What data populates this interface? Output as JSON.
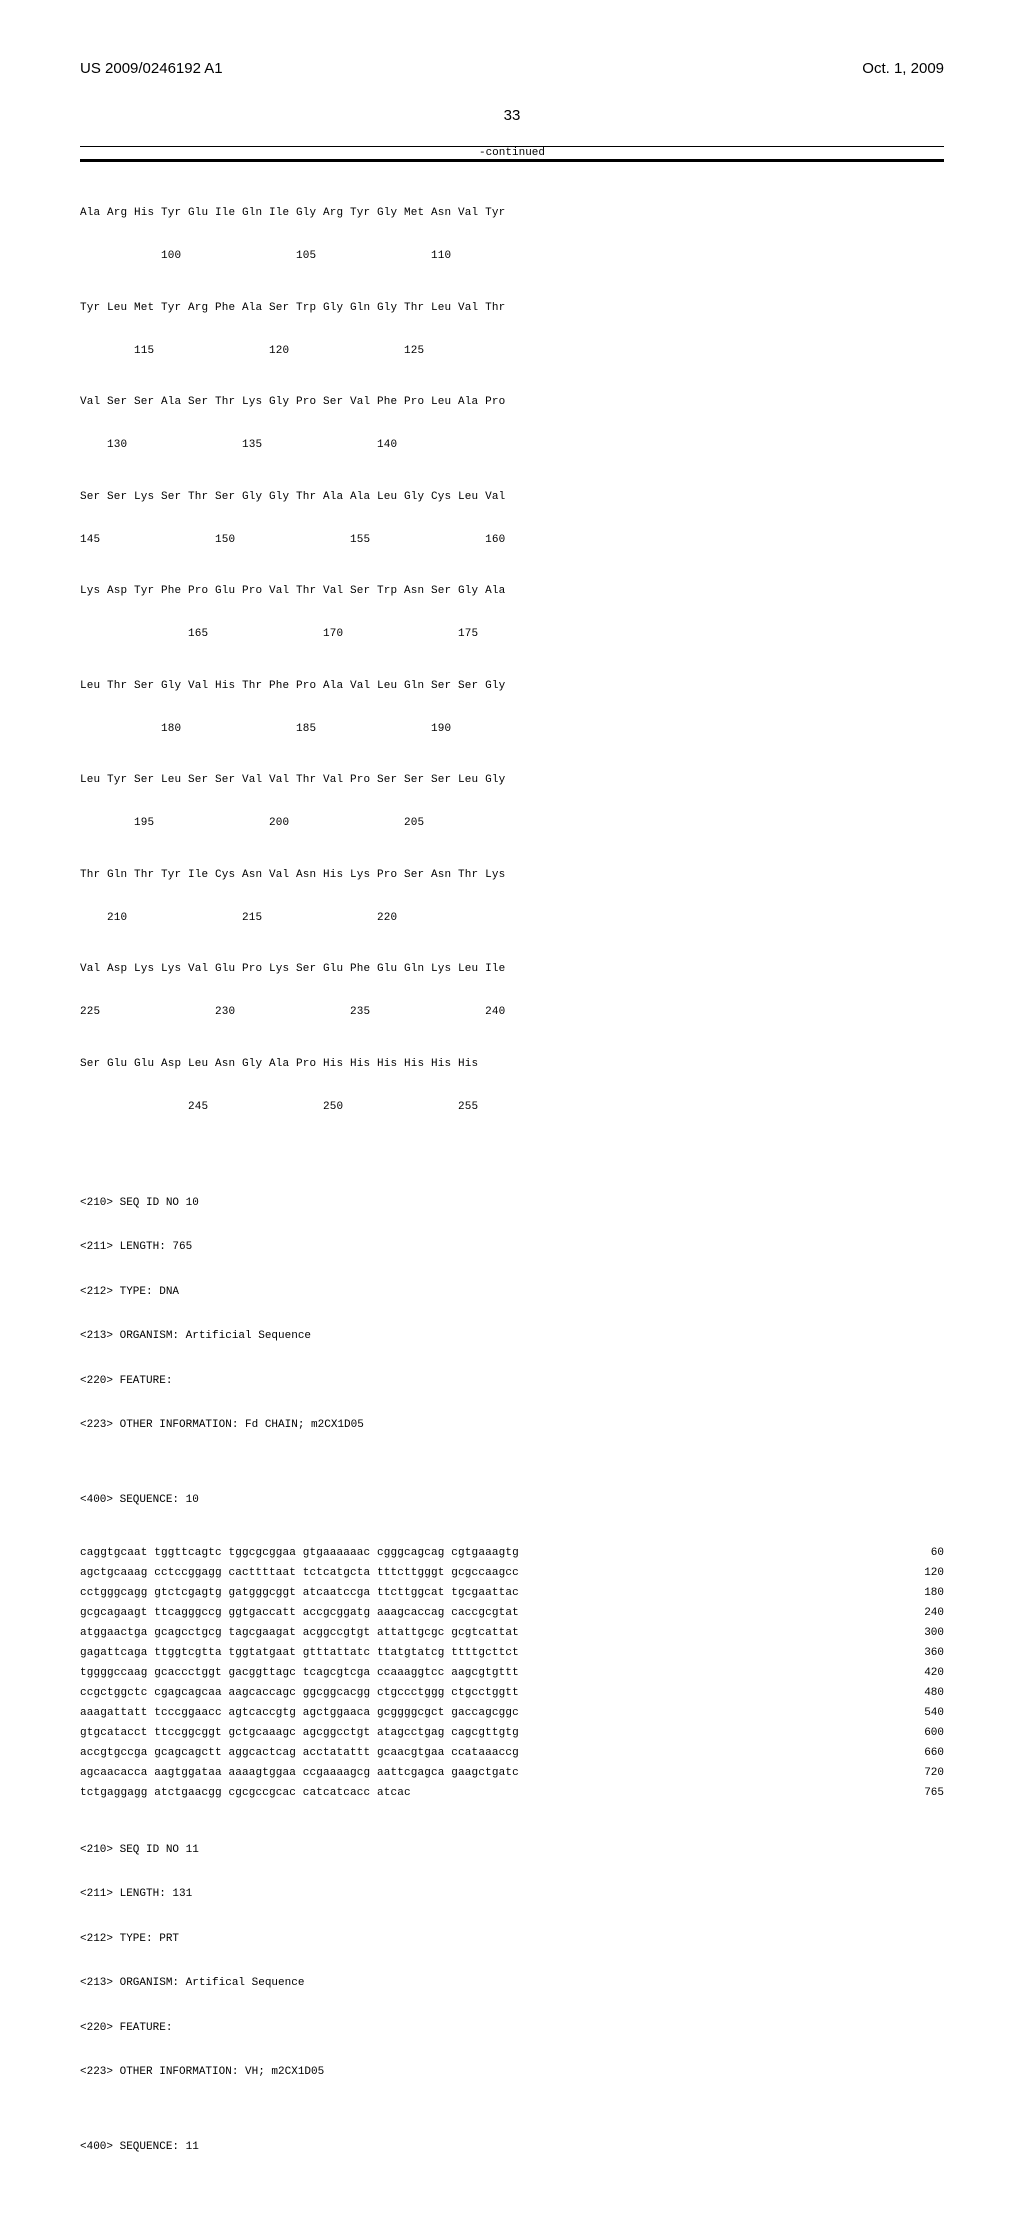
{
  "header": {
    "left": "US 2009/0246192 A1",
    "right": "Oct. 1, 2009",
    "page_number": "33"
  },
  "continued": "-continued",
  "protein_rows": [
    {
      "aa": "Ala Arg His Tyr Glu Ile Gln Ile Gly Arg Tyr Gly Met Asn Val Tyr",
      "nums": "            100                 105                 110"
    },
    {
      "aa": "Tyr Leu Met Tyr Arg Phe Ala Ser Trp Gly Gln Gly Thr Leu Val Thr",
      "nums": "        115                 120                 125"
    },
    {
      "aa": "Val Ser Ser Ala Ser Thr Lys Gly Pro Ser Val Phe Pro Leu Ala Pro",
      "nums": "    130                 135                 140"
    },
    {
      "aa": "Ser Ser Lys Ser Thr Ser Gly Gly Thr Ala Ala Leu Gly Cys Leu Val",
      "nums": "145                 150                 155                 160"
    },
    {
      "aa": "Lys Asp Tyr Phe Pro Glu Pro Val Thr Val Ser Trp Asn Ser Gly Ala",
      "nums": "                165                 170                 175"
    },
    {
      "aa": "Leu Thr Ser Gly Val His Thr Phe Pro Ala Val Leu Gln Ser Ser Gly",
      "nums": "            180                 185                 190"
    },
    {
      "aa": "Leu Tyr Ser Leu Ser Ser Val Val Thr Val Pro Ser Ser Ser Leu Gly",
      "nums": "        195                 200                 205"
    },
    {
      "aa": "Thr Gln Thr Tyr Ile Cys Asn Val Asn His Lys Pro Ser Asn Thr Lys",
      "nums": "    210                 215                 220"
    },
    {
      "aa": "Val Asp Lys Lys Val Glu Pro Lys Ser Glu Phe Glu Gln Lys Leu Ile",
      "nums": "225                 230                 235                 240"
    },
    {
      "aa": "Ser Glu Glu Asp Leu Asn Gly Ala Pro His His His His His His",
      "nums": "                245                 250                 255"
    }
  ],
  "seq10_meta": [
    "<210> SEQ ID NO 10",
    "<211> LENGTH: 765",
    "<212> TYPE: DNA",
    "<213> ORGANISM: Artificial Sequence",
    "<220> FEATURE:",
    "<223> OTHER INFORMATION: Fd CHAIN; m2CX1D05",
    "",
    "<400> SEQUENCE: 10"
  ],
  "dna_rows": [
    {
      "seq": "caggtgcaat tggttcagtc tggcgcggaa gtgaaaaaac cgggcagcag cgtgaaagtg",
      "n": "  60"
    },
    {
      "seq": "agctgcaaag cctccggagg cacttttaat tctcatgcta tttcttgggt gcgccaagcc",
      "n": " 120"
    },
    {
      "seq": "cctgggcagg gtctcgagtg gatgggcggt atcaatccga ttcttggcat tgcgaattac",
      "n": " 180"
    },
    {
      "seq": "gcgcagaagt ttcagggccg ggtgaccatt accgcggatg aaagcaccag caccgcgtat",
      "n": " 240"
    },
    {
      "seq": "atggaactga gcagcctgcg tagcgaagat acggccgtgt attattgcgc gcgtcattat",
      "n": " 300"
    },
    {
      "seq": "gagattcaga ttggtcgtta tggtatgaat gtttattatc ttatgtatcg ttttgcttct",
      "n": " 360"
    },
    {
      "seq": "tggggccaag gcaccctggt gacggttagc tcagcgtcga ccaaaggtcc aagcgtgttt",
      "n": " 420"
    },
    {
      "seq": "ccgctggctc cgagcagcaa aagcaccagc ggcggcacgg ctgccctggg ctgcctggtt",
      "n": " 480"
    },
    {
      "seq": "aaagattatt tcccggaacc agtcaccgtg agctggaaca gcggggcgct gaccagcggc",
      "n": " 540"
    },
    {
      "seq": "gtgcatacct ttccggcggt gctgcaaagc agcggcctgt atagcctgag cagcgttgtg",
      "n": " 600"
    },
    {
      "seq": "accgtgccga gcagcagctt aggcactcag acctatattt gcaacgtgaa ccataaaccg",
      "n": " 660"
    },
    {
      "seq": "agcaacacca aagtggataa aaaagtggaa ccgaaaagcg aattcgagca gaagctgatc",
      "n": " 720"
    },
    {
      "seq": "tctgaggagg atctgaacgg cgcgccgcac catcatcacc atcac",
      "n": " 765"
    }
  ],
  "seq11_meta": [
    "<210> SEQ ID NO 11",
    "<211> LENGTH: 131",
    "<212> TYPE: PRT",
    "<213> ORGANISM: Artifical Sequence",
    "<220> FEATURE:",
    "<223> OTHER INFORMATION: VH; m2CX1D05",
    "",
    "<400> SEQUENCE: 11"
  ]
}
